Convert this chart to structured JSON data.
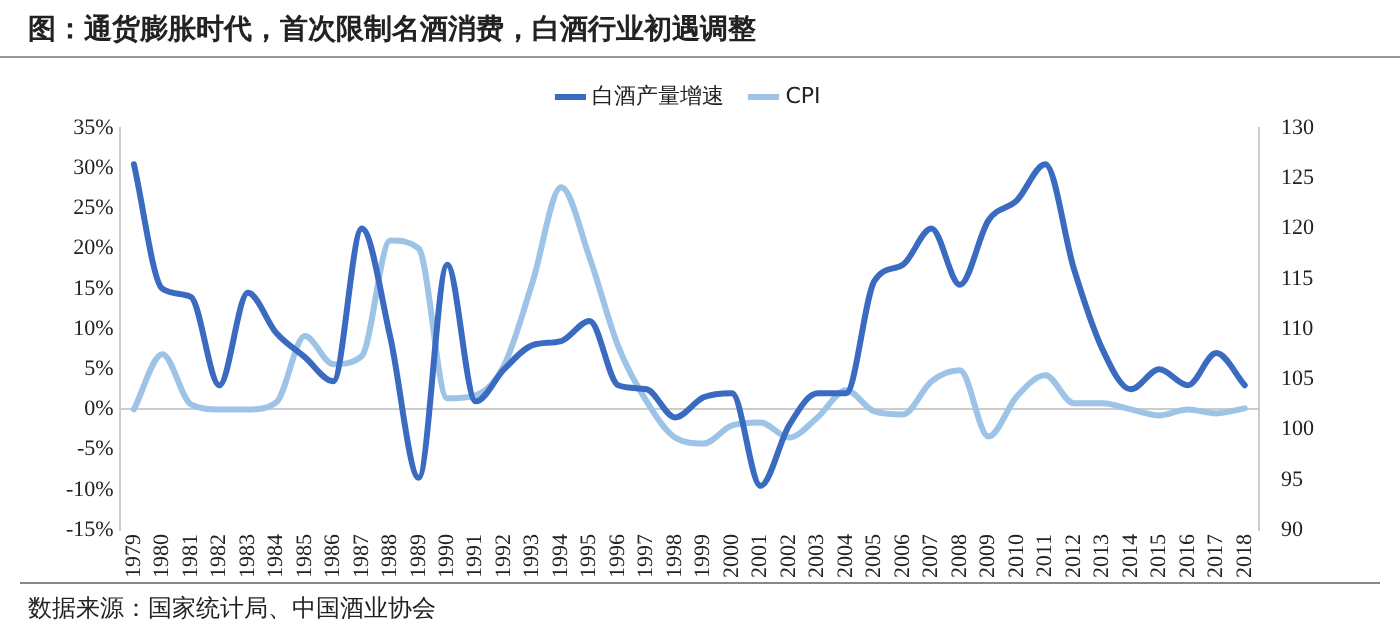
{
  "chart_data": {
    "type": "line",
    "title": "图：通货膨胀时代，首次限制名酒消费，白酒行业初遇调整",
    "categories": [
      "1979",
      "1980",
      "1981",
      "1982",
      "1983",
      "1984",
      "1985",
      "1986",
      "1987",
      "1988",
      "1989",
      "1990",
      "1991",
      "1992",
      "1993",
      "1994",
      "1995",
      "1996",
      "1997",
      "1998",
      "1999",
      "2000",
      "2001",
      "2002",
      "2003",
      "2004",
      "2005",
      "2006",
      "2007",
      "2008",
      "2009",
      "2010",
      "2011",
      "2012",
      "2013",
      "2014",
      "2015",
      "2016",
      "2017",
      "2018"
    ],
    "series": [
      {
        "name": "白酒产量增速",
        "color": "#3a6bc0",
        "values": [
          30.5,
          15,
          14,
          3,
          14.5,
          9.5,
          6.5,
          3.5,
          22.5,
          9,
          -8.5,
          18,
          1,
          5,
          8,
          8.5,
          11,
          3,
          2.5,
          -1,
          1.5,
          2,
          -9.5,
          -2,
          2,
          2,
          16,
          18,
          22.5,
          15.5,
          23.5,
          26,
          30.5,
          17.5,
          7.5,
          2.5,
          5,
          3,
          7,
          3
        ]
      },
      {
        "name": "CPI",
        "color": "#9dc3e6",
        "axis": "y2",
        "values": [
          102,
          107.5,
          102.5,
          102,
          102,
          102.7,
          109.3,
          106.5,
          107.3,
          118.8,
          118,
          103.1,
          103.4,
          106.4,
          114.7,
          124.1,
          117.1,
          108.3,
          102.8,
          99.2,
          98.6,
          100.4,
          100.7,
          99.2,
          101.2,
          103.9,
          101.8,
          101.5,
          104.8,
          105.9,
          99.3,
          103.3,
          105.4,
          102.6,
          102.6,
          102,
          101.4,
          102,
          101.6,
          102.1
        ]
      }
    ],
    "ylim": [
      -15,
      35
    ],
    "yticks": [
      {
        "value": -15,
        "label": "-15%"
      },
      {
        "value": -10,
        "label": "-10%"
      },
      {
        "value": -5,
        "label": "-5%"
      },
      {
        "value": 0,
        "label": "0%"
      },
      {
        "value": 5,
        "label": "5%"
      },
      {
        "value": 10,
        "label": "10%"
      },
      {
        "value": 15,
        "label": "15%"
      },
      {
        "value": 20,
        "label": "20%"
      },
      {
        "value": 25,
        "label": "25%"
      },
      {
        "value": 30,
        "label": "30%"
      },
      {
        "value": 35,
        "label": "35%"
      }
    ],
    "y2lim": [
      90,
      130
    ],
    "y2ticks": [
      90,
      95,
      100,
      105,
      110,
      115,
      120,
      125,
      130
    ],
    "legend": "top",
    "marker": "none",
    "line_style": "solid",
    "annotations": [
      "数据来源：国家统计局、中国酒业协会"
    ]
  }
}
